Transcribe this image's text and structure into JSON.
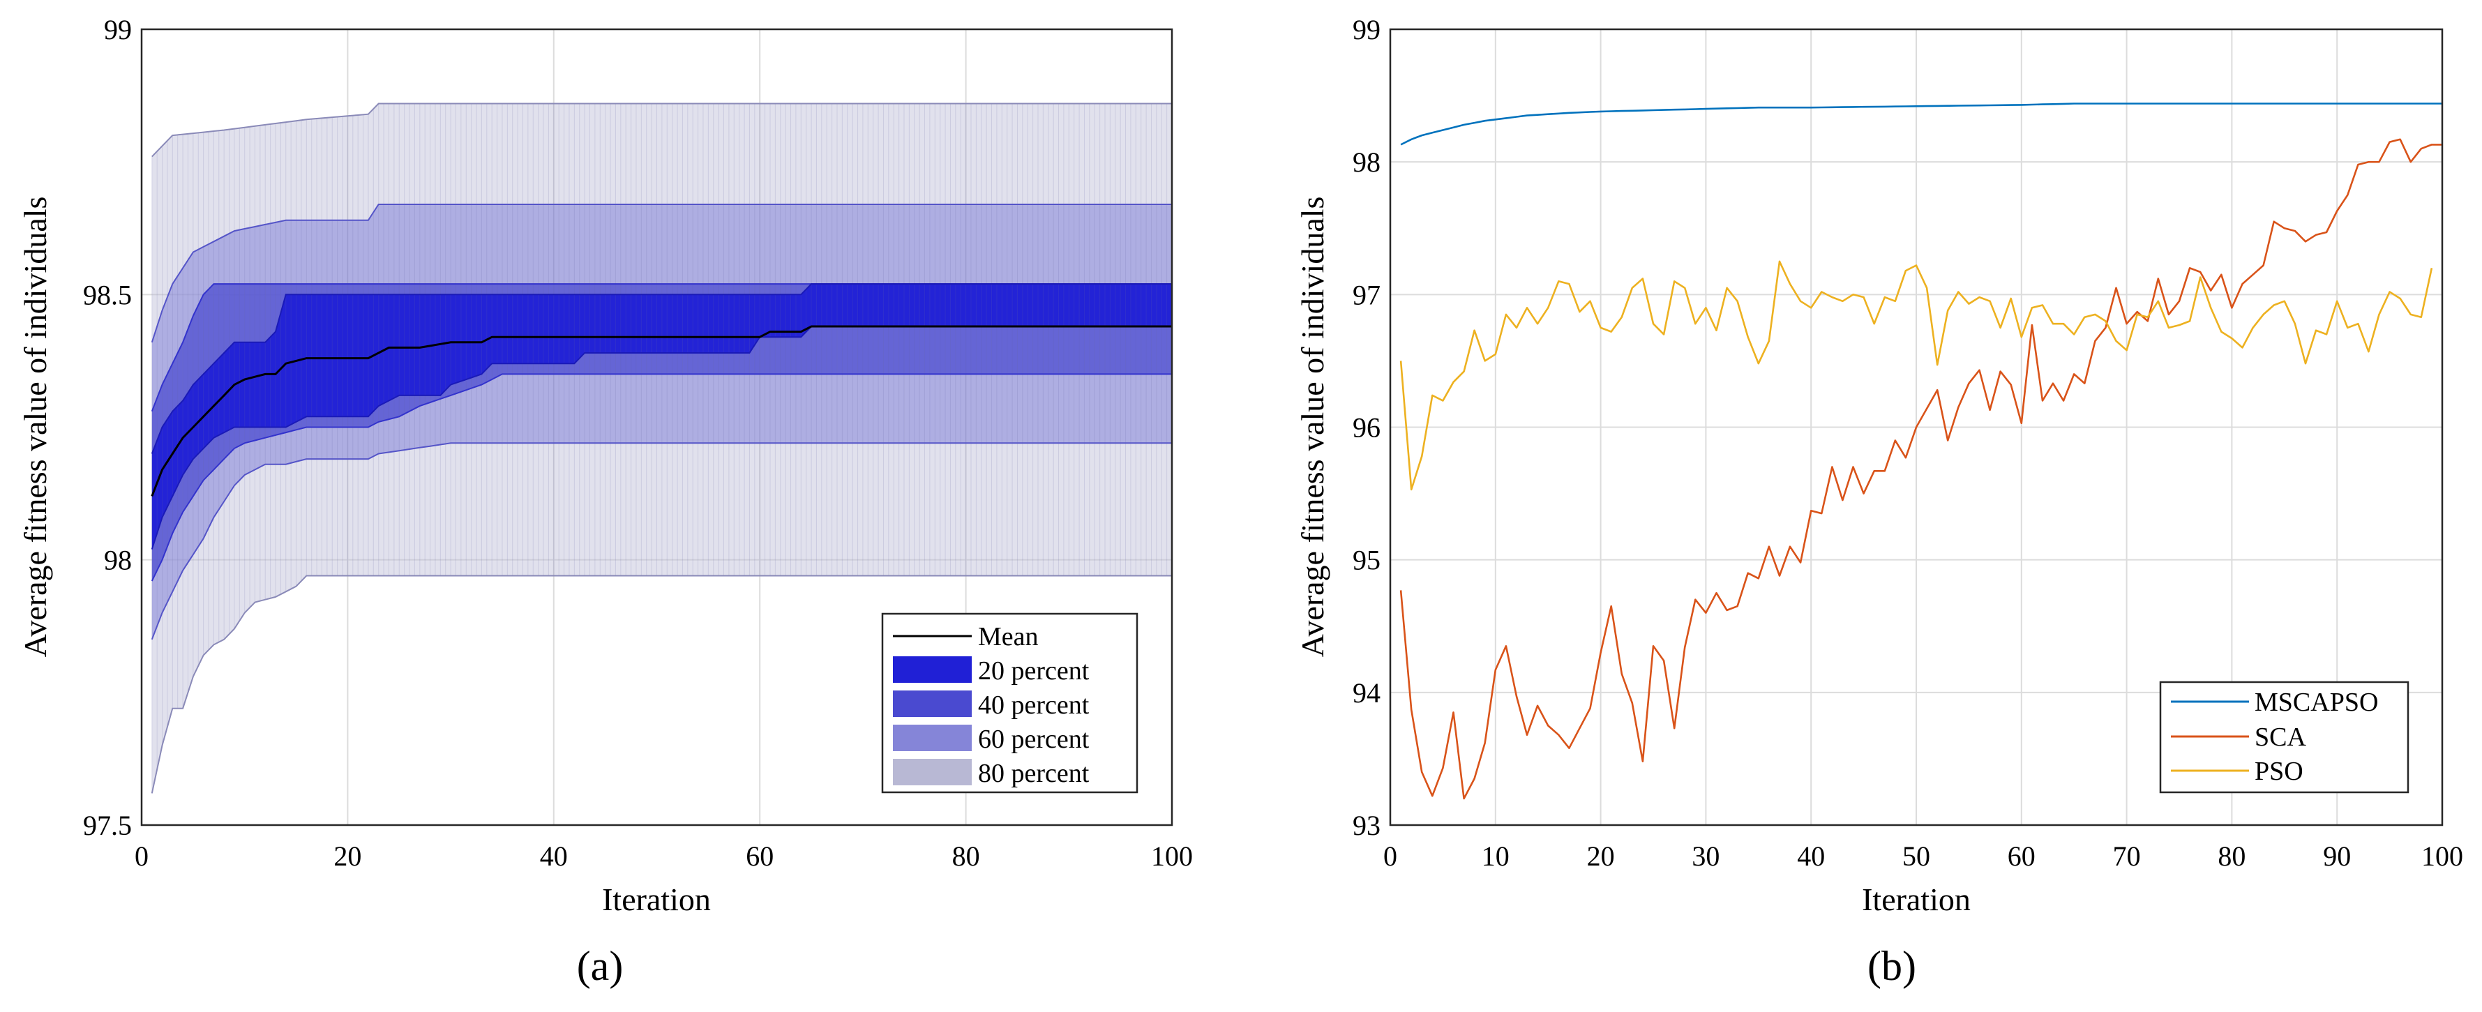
{
  "colors": {
    "mean": "#000000",
    "band20": "#2020d6",
    "band40": "#4a4ad0",
    "band60": "#8585d8",
    "band80": "#b8b8d4",
    "mscapso": "#0072bd",
    "sca": "#d95319",
    "pso": "#edb120"
  },
  "chart_data": [
    {
      "type": "area",
      "panel_label": "(a)",
      "xlabel": "Iteration",
      "ylabel": "Average fitness value of individuals",
      "xlim": [
        0,
        100
      ],
      "ylim": [
        97.5,
        99
      ],
      "xticks": [
        0,
        20,
        40,
        60,
        80,
        100
      ],
      "yticks": [
        97.5,
        98,
        98.5,
        99
      ],
      "ytick_labels": [
        "97.5",
        "98",
        "98.5",
        "99"
      ],
      "grid": true,
      "legend_position": "bottom-right",
      "legend": [
        {
          "label": "Mean",
          "kind": "line",
          "color_key": "mean"
        },
        {
          "label": "20 percent",
          "kind": "patch",
          "color_key": "band20"
        },
        {
          "label": "40 percent",
          "kind": "patch",
          "color_key": "band40"
        },
        {
          "label": "60 percent",
          "kind": "patch",
          "color_key": "band60"
        },
        {
          "label": "80 percent",
          "kind": "patch",
          "color_key": "band80"
        }
      ],
      "series": {
        "mean": [
          [
            1,
            98.12
          ],
          [
            2,
            98.17
          ],
          [
            3,
            98.2
          ],
          [
            4,
            98.23
          ],
          [
            5,
            98.25
          ],
          [
            6,
            98.27
          ],
          [
            7,
            98.29
          ],
          [
            8,
            98.31
          ],
          [
            9,
            98.33
          ],
          [
            10,
            98.34
          ],
          [
            12,
            98.35
          ],
          [
            13,
            98.35
          ],
          [
            14,
            98.37
          ],
          [
            16,
            98.38
          ],
          [
            18,
            98.38
          ],
          [
            22,
            98.38
          ],
          [
            23,
            98.39
          ],
          [
            24,
            98.4
          ],
          [
            27,
            98.4
          ],
          [
            30,
            98.41
          ],
          [
            33,
            98.41
          ],
          [
            34,
            98.42
          ],
          [
            40,
            98.42
          ],
          [
            45,
            98.42
          ],
          [
            55,
            98.42
          ],
          [
            60,
            98.42
          ],
          [
            61,
            98.43
          ],
          [
            64,
            98.43
          ],
          [
            65,
            98.44
          ],
          [
            80,
            98.44
          ],
          [
            100,
            98.44
          ]
        ],
        "band20": {
          "upper": [
            [
              1,
              98.2
            ],
            [
              2,
              98.25
            ],
            [
              3,
              98.28
            ],
            [
              4,
              98.3
            ],
            [
              5,
              98.33
            ],
            [
              6,
              98.35
            ],
            [
              7,
              98.37
            ],
            [
              8,
              98.39
            ],
            [
              9,
              98.41
            ],
            [
              10,
              98.41
            ],
            [
              12,
              98.41
            ],
            [
              13,
              98.43
            ],
            [
              14,
              98.5
            ],
            [
              64,
              98.5
            ],
            [
              65,
              98.52
            ],
            [
              100,
              98.52
            ]
          ],
          "lower": [
            [
              1,
              98.02
            ],
            [
              2,
              98.08
            ],
            [
              3,
              98.12
            ],
            [
              4,
              98.16
            ],
            [
              5,
              98.19
            ],
            [
              6,
              98.21
            ],
            [
              7,
              98.23
            ],
            [
              8,
              98.24
            ],
            [
              9,
              98.25
            ],
            [
              14,
              98.25
            ],
            [
              15,
              98.26
            ],
            [
              16,
              98.27
            ],
            [
              22,
              98.27
            ],
            [
              23,
              98.29
            ],
            [
              25,
              98.31
            ],
            [
              29,
              98.31
            ],
            [
              30,
              98.33
            ],
            [
              33,
              98.35
            ],
            [
              34,
              98.37
            ],
            [
              42,
              98.37
            ],
            [
              43,
              98.39
            ],
            [
              59,
              98.39
            ],
            [
              60,
              98.42
            ],
            [
              64,
              98.42
            ],
            [
              65,
              98.44
            ],
            [
              100,
              98.44
            ]
          ]
        },
        "band40": {
          "upper": [
            [
              1,
              98.28
            ],
            [
              2,
              98.33
            ],
            [
              3,
              98.37
            ],
            [
              4,
              98.41
            ],
            [
              5,
              98.46
            ],
            [
              6,
              98.5
            ],
            [
              7,
              98.52
            ],
            [
              100,
              98.52
            ]
          ],
          "lower": [
            [
              1,
              97.96
            ],
            [
              2,
              98.0
            ],
            [
              3,
              98.05
            ],
            [
              4,
              98.09
            ],
            [
              5,
              98.12
            ],
            [
              6,
              98.15
            ],
            [
              7,
              98.17
            ],
            [
              8,
              98.19
            ],
            [
              9,
              98.21
            ],
            [
              10,
              98.22
            ],
            [
              12,
              98.23
            ],
            [
              14,
              98.24
            ],
            [
              16,
              98.25
            ],
            [
              22,
              98.25
            ],
            [
              23,
              98.26
            ],
            [
              25,
              98.27
            ],
            [
              27,
              98.29
            ],
            [
              30,
              98.31
            ],
            [
              33,
              98.33
            ],
            [
              35,
              98.35
            ],
            [
              60,
              98.35
            ],
            [
              100,
              98.35
            ]
          ]
        },
        "band60": {
          "upper": [
            [
              1,
              98.41
            ],
            [
              2,
              98.47
            ],
            [
              3,
              98.52
            ],
            [
              4,
              98.55
            ],
            [
              5,
              98.58
            ],
            [
              7,
              98.6
            ],
            [
              9,
              98.62
            ],
            [
              14,
              98.64
            ],
            [
              22,
              98.64
            ],
            [
              23,
              98.67
            ],
            [
              100,
              98.67
            ]
          ],
          "lower": [
            [
              1,
              97.85
            ],
            [
              2,
              97.9
            ],
            [
              3,
              97.94
            ],
            [
              4,
              97.98
            ],
            [
              5,
              98.01
            ],
            [
              6,
              98.04
            ],
            [
              7,
              98.08
            ],
            [
              8,
              98.11
            ],
            [
              9,
              98.14
            ],
            [
              10,
              98.16
            ],
            [
              12,
              98.18
            ],
            [
              14,
              98.18
            ],
            [
              16,
              98.19
            ],
            [
              22,
              98.19
            ],
            [
              23,
              98.2
            ],
            [
              30,
              98.22
            ],
            [
              100,
              98.22
            ]
          ]
        },
        "band80": {
          "upper": [
            [
              1,
              98.76
            ],
            [
              2,
              98.78
            ],
            [
              3,
              98.8
            ],
            [
              8,
              98.81
            ],
            [
              16,
              98.83
            ],
            [
              22,
              98.84
            ],
            [
              23,
              98.86
            ],
            [
              100,
              98.86
            ]
          ],
          "lower": [
            [
              1,
              97.56
            ],
            [
              2,
              97.65
            ],
            [
              3,
              97.72
            ],
            [
              4,
              97.72
            ],
            [
              5,
              97.78
            ],
            [
              6,
              97.82
            ],
            [
              7,
              97.84
            ],
            [
              8,
              97.85
            ],
            [
              9,
              97.87
            ],
            [
              10,
              97.9
            ],
            [
              11,
              97.92
            ],
            [
              13,
              97.93
            ],
            [
              15,
              97.95
            ],
            [
              16,
              97.97
            ],
            [
              100,
              97.97
            ]
          ]
        }
      }
    },
    {
      "type": "line",
      "panel_label": "(b)",
      "xlabel": "Iteration",
      "ylabel": "Average fitness value of individuals",
      "xlim": [
        0,
        100
      ],
      "ylim": [
        93,
        99
      ],
      "xticks": [
        0,
        10,
        20,
        30,
        40,
        50,
        60,
        70,
        80,
        90,
        100
      ],
      "yticks": [
        93,
        94,
        95,
        96,
        97,
        98,
        99
      ],
      "grid": true,
      "legend_position": "bottom-right",
      "series": [
        {
          "name": "MSCAPSO",
          "color_key": "mscapso",
          "points": [
            [
              1,
              98.13
            ],
            [
              2,
              98.17
            ],
            [
              3,
              98.2
            ],
            [
              5,
              98.24
            ],
            [
              7,
              98.28
            ],
            [
              9,
              98.31
            ],
            [
              11,
              98.33
            ],
            [
              13,
              98.35
            ],
            [
              15,
              98.36
            ],
            [
              17,
              98.37
            ],
            [
              20,
              98.38
            ],
            [
              25,
              98.39
            ],
            [
              30,
              98.4
            ],
            [
              35,
              98.41
            ],
            [
              40,
              98.41
            ],
            [
              50,
              98.42
            ],
            [
              60,
              98.43
            ],
            [
              65,
              98.44
            ],
            [
              80,
              98.44
            ],
            [
              100,
              98.44
            ]
          ]
        },
        {
          "name": "SCA",
          "color_key": "sca",
          "values": [
            94.77,
            93.87,
            93.4,
            93.22,
            93.43,
            93.85,
            93.2,
            93.35,
            93.62,
            94.17,
            94.35,
            93.97,
            93.68,
            93.9,
            93.75,
            93.68,
            93.58,
            93.73,
            93.88,
            94.3,
            94.65,
            94.14,
            93.92,
            93.48,
            94.35,
            94.24,
            93.73,
            94.34,
            94.7,
            94.6,
            94.75,
            94.62,
            94.65,
            94.9,
            94.86,
            95.1,
            94.88,
            95.1,
            94.98,
            95.37,
            95.35,
            95.7,
            95.45,
            95.7,
            95.5,
            95.67,
            95.67,
            95.9,
            95.77,
            96.0,
            96.14,
            96.28,
            95.9,
            96.15,
            96.33,
            96.43,
            96.13,
            96.42,
            96.32,
            96.03,
            96.77,
            96.2,
            96.33,
            96.2,
            96.4,
            96.33,
            96.65,
            96.75,
            97.05,
            96.78,
            96.87,
            96.8,
            97.12,
            96.85,
            96.95,
            97.2,
            97.17,
            97.03,
            97.15,
            96.9,
            97.08,
            97.15,
            97.22,
            97.55,
            97.5,
            97.48,
            97.4,
            97.45,
            97.47,
            97.63,
            97.75,
            97.98,
            98.0,
            98.0,
            98.15,
            98.17,
            98.0,
            98.1,
            98.13,
            98.13
          ]
        },
        {
          "name": "PSO",
          "color_key": "pso",
          "values": [
            96.5,
            95.53,
            95.78,
            96.24,
            96.2,
            96.34,
            96.42,
            96.73,
            96.5,
            96.55,
            96.85,
            96.75,
            96.9,
            96.78,
            96.9,
            97.1,
            97.08,
            96.87,
            96.95,
            96.75,
            96.72,
            96.83,
            97.05,
            97.12,
            96.78,
            96.7,
            97.1,
            97.05,
            96.78,
            96.9,
            96.73,
            97.05,
            96.95,
            96.68,
            96.48,
            96.65,
            97.25,
            97.08,
            96.95,
            96.9,
            97.02,
            96.98,
            96.95,
            97.0,
            96.98,
            96.78,
            96.98,
            96.95,
            97.18,
            97.22,
            97.05,
            96.47,
            96.88,
            97.02,
            96.93,
            96.98,
            96.95,
            96.75,
            96.97,
            96.68,
            96.9,
            96.92,
            96.78,
            96.78,
            96.7,
            96.83,
            96.85,
            96.8,
            96.65,
            96.58,
            96.85,
            96.83,
            96.95,
            96.75,
            96.77,
            96.8,
            97.13,
            96.9,
            96.72,
            96.67,
            96.6,
            96.75,
            96.85,
            96.92,
            96.95,
            96.78,
            96.48,
            96.73,
            96.7,
            96.95,
            96.75,
            96.78,
            96.57,
            96.85,
            97.02,
            96.97,
            96.85,
            96.83,
            97.2
          ]
        }
      ]
    }
  ]
}
